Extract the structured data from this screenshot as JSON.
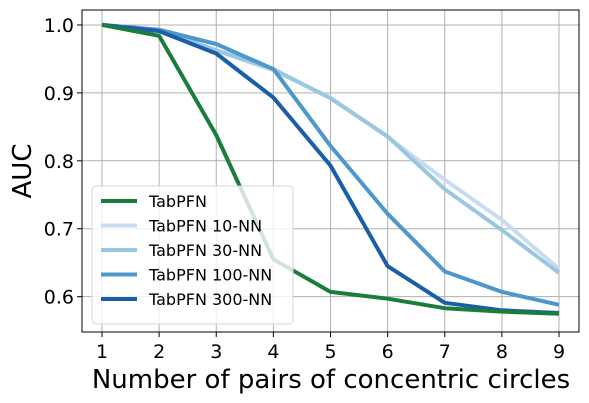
{
  "chart_data": {
    "type": "line",
    "title": "",
    "xlabel": "Number of pairs of concentric circles",
    "ylabel": "AUC",
    "x": [
      1,
      2,
      3,
      4,
      5,
      6,
      7,
      8,
      9
    ],
    "xticks": [
      "1",
      "2",
      "3",
      "4",
      "5",
      "6",
      "7",
      "8",
      "9"
    ],
    "yticks": [
      "0.6",
      "0.7",
      "0.8",
      "0.9",
      "1.0"
    ],
    "xlim": [
      0.65,
      9.35
    ],
    "ylim": [
      0.548,
      1.022
    ],
    "grid": true,
    "legend_position": "lower-left",
    "series": [
      {
        "name": "TabPFN",
        "color": "#1b7d3b",
        "values": [
          1.0,
          0.984,
          0.838,
          0.655,
          0.607,
          0.597,
          0.583,
          0.578,
          0.575
        ]
      },
      {
        "name": "TabPFN 10-NN",
        "color": "#c9dcef",
        "values": [
          1.0,
          0.992,
          0.962,
          0.933,
          0.893,
          0.835,
          0.772,
          0.713,
          0.641
        ]
      },
      {
        "name": "TabPFN 30-NN",
        "color": "#9ac7e0",
        "values": [
          1.0,
          0.992,
          0.963,
          0.935,
          0.892,
          0.836,
          0.758,
          0.698,
          0.635
        ]
      },
      {
        "name": "TabPFN 100-NN",
        "color": "#4e97cb",
        "values": [
          1.0,
          0.993,
          0.972,
          0.935,
          0.822,
          0.722,
          0.637,
          0.607,
          0.588
        ]
      },
      {
        "name": "TabPFN 300-NN",
        "color": "#1a5da8",
        "values": [
          1.0,
          0.991,
          0.958,
          0.893,
          0.793,
          0.645,
          0.591,
          0.58,
          0.576
        ]
      }
    ]
  }
}
